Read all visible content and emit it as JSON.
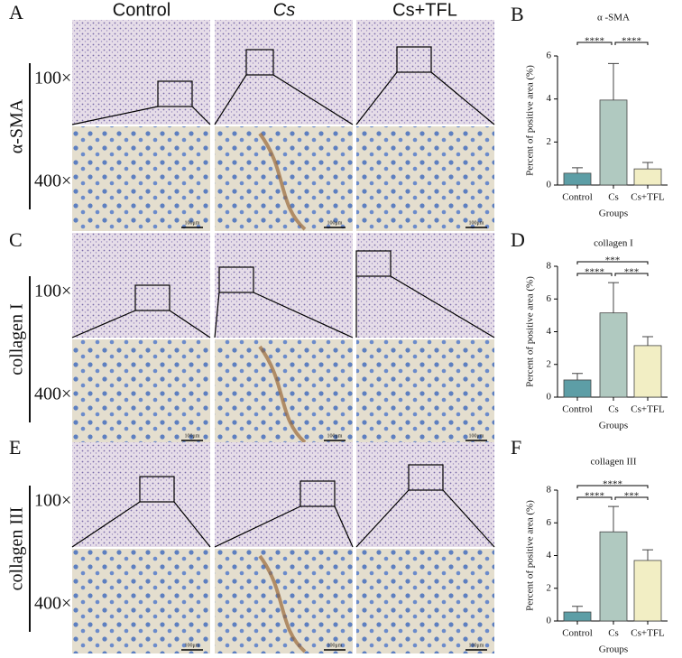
{
  "panel_labels": [
    "A",
    "B",
    "C",
    "D",
    "E",
    "F"
  ],
  "image_grid": {
    "columns": [
      "Control",
      "Cs",
      "Cs+TFL"
    ],
    "stains": [
      "α-SMA",
      "collagen I",
      "collagen III"
    ],
    "magnifications": [
      "100×",
      "400×"
    ],
    "scale_bar": "100μm"
  },
  "chart_data": [
    {
      "type": "bar",
      "title": "α -SMA",
      "xlabel": "Groups",
      "ylabel": "Percent of positive area (%)",
      "categories": [
        "Control",
        "Cs",
        "Cs+TFL"
      ],
      "values": [
        0.55,
        3.95,
        0.75
      ],
      "errors": [
        0.25,
        1.7,
        0.3
      ],
      "colors": [
        "#5d9ea6",
        "#b0c9c0",
        "#f2eec4"
      ],
      "ylim": [
        0,
        6
      ],
      "yticks": [
        0,
        2,
        4,
        6
      ],
      "comparisons": [
        {
          "from": "Control",
          "to": "Cs",
          "label": "****"
        },
        {
          "from": "Cs",
          "to": "Cs+TFL",
          "label": "****"
        }
      ]
    },
    {
      "type": "bar",
      "title": "collagen I",
      "xlabel": "Groups",
      "ylabel": "Percent of positive area (%)",
      "categories": [
        "Control",
        "Cs",
        "Cs+TFL"
      ],
      "values": [
        1.05,
        5.15,
        3.15
      ],
      "errors": [
        0.4,
        1.85,
        0.55
      ],
      "colors": [
        "#5d9ea6",
        "#b0c9c0",
        "#f2eec4"
      ],
      "ylim": [
        0,
        8
      ],
      "yticks": [
        0,
        2,
        4,
        6,
        8
      ],
      "comparisons": [
        {
          "from": "Control",
          "to": "Cs+TFL",
          "label": "***"
        },
        {
          "from": "Control",
          "to": "Cs",
          "label": "****"
        },
        {
          "from": "Cs",
          "to": "Cs+TFL",
          "label": "***"
        }
      ]
    },
    {
      "type": "bar",
      "title": "collagen III",
      "xlabel": "Groups",
      "ylabel": "Percent of positive area (%)",
      "categories": [
        "Control",
        "Cs",
        "Cs+TFL"
      ],
      "values": [
        0.55,
        5.45,
        3.7
      ],
      "errors": [
        0.35,
        1.55,
        0.65
      ],
      "colors": [
        "#5d9ea6",
        "#b0c9c0",
        "#f2eec4"
      ],
      "ylim": [
        0,
        8
      ],
      "yticks": [
        0,
        2,
        4,
        6,
        8
      ],
      "comparisons": [
        {
          "from": "Control",
          "to": "Cs+TFL",
          "label": "****"
        },
        {
          "from": "Control",
          "to": "Cs",
          "label": "****"
        },
        {
          "from": "Cs",
          "to": "Cs+TFL",
          "label": "***"
        }
      ]
    }
  ]
}
